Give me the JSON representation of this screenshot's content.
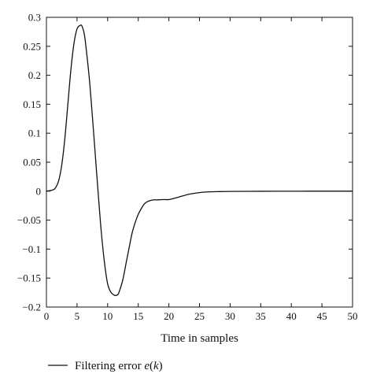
{
  "chart_data": {
    "type": "line",
    "title": "",
    "xlabel": "Time in samples",
    "ylabel": "",
    "xlim": [
      0,
      50
    ],
    "ylim": [
      -0.2,
      0.3
    ],
    "x_ticks": [
      0,
      5,
      10,
      15,
      20,
      25,
      30,
      35,
      40,
      45,
      50
    ],
    "y_ticks": [
      -0.2,
      -0.15,
      -0.1,
      -0.05,
      0,
      0.05,
      0.1,
      0.15,
      0.2,
      0.25,
      0.3
    ],
    "x_tick_labels": [
      "0",
      "5",
      "10",
      "15",
      "20",
      "25",
      "30",
      "35",
      "40",
      "45",
      "50"
    ],
    "y_tick_labels": [
      "−0.2",
      "−0.15",
      "−0.1",
      "−0.05",
      "0",
      "0.05",
      "0.1",
      "0.15",
      "0.2",
      "0.25",
      "0.3"
    ],
    "grid": false,
    "legend": {
      "placement": "bottom-left",
      "entries": [
        {
          "prefix": "Filtering error ",
          "math_var": "e",
          "open": "(",
          "math_arg": "k",
          "close": ")"
        }
      ]
    },
    "series": [
      {
        "name": "Filtering error e(k)",
        "color": "#111111",
        "x": [
          0,
          1,
          1.5,
          2,
          2.5,
          3,
          3.5,
          4,
          4.5,
          5,
          5.5,
          5.8,
          6.2,
          6.5,
          7,
          7.5,
          8,
          8.5,
          9,
          9.5,
          10,
          10.5,
          11,
          11.3,
          11.7,
          12,
          12.5,
          13,
          13.5,
          14,
          14.5,
          15,
          15.5,
          16,
          16.5,
          17,
          17.5,
          18,
          19,
          20,
          21,
          22,
          23,
          24,
          25,
          26,
          28,
          30,
          35,
          40,
          45,
          50
        ],
        "y": [
          0,
          0.002,
          0.006,
          0.018,
          0.045,
          0.09,
          0.15,
          0.21,
          0.255,
          0.28,
          0.286,
          0.285,
          0.27,
          0.245,
          0.195,
          0.13,
          0.06,
          -0.01,
          -0.075,
          -0.125,
          -0.16,
          -0.174,
          -0.179,
          -0.18,
          -0.178,
          -0.17,
          -0.152,
          -0.125,
          -0.098,
          -0.072,
          -0.054,
          -0.04,
          -0.03,
          -0.022,
          -0.018,
          -0.016,
          -0.015,
          -0.015,
          -0.0145,
          -0.0145,
          -0.012,
          -0.009,
          -0.006,
          -0.004,
          -0.0025,
          -0.0015,
          -0.0008,
          -0.0004,
          -0.0002,
          -0.0001,
          0,
          0
        ]
      }
    ]
  }
}
